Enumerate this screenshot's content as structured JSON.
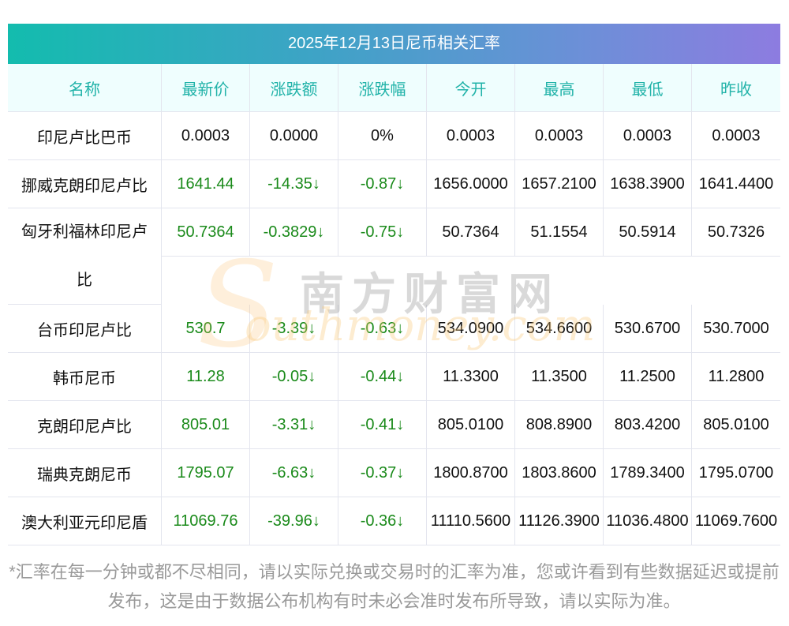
{
  "title": "2025年12月13日尼币相关汇率",
  "headers": [
    "名称",
    "最新价",
    "涨跌额",
    "涨跌幅",
    "今开",
    "最高",
    "最低",
    "昨收"
  ],
  "rows": [
    {
      "name": "印尼卢比巴币",
      "latest": "0.0003",
      "change": "0.0000",
      "pct": "0%",
      "open": "0.0003",
      "high": "0.0003",
      "low": "0.0003",
      "prev": "0.0003",
      "colored": false
    },
    {
      "name": "挪威克朗印尼卢比",
      "latest": "1641.44",
      "change": "-14.35↓",
      "pct": "-0.87↓",
      "open": "1656.0000",
      "high": "1657.2100",
      "low": "1638.3900",
      "prev": "1641.4400",
      "colored": true
    },
    {
      "name": "匈牙利福林印尼卢比",
      "latest": "50.7364",
      "change": "-0.3829↓",
      "pct": "-0.75↓",
      "open": "50.7364",
      "high": "51.1554",
      "low": "50.5914",
      "prev": "50.7326",
      "colored": true,
      "tall": true
    },
    {
      "name": "台币印尼卢比",
      "latest": "530.7",
      "change": "-3.39↓",
      "pct": "-0.63↓",
      "open": "534.0900",
      "high": "534.6600",
      "low": "530.6700",
      "prev": "530.7000",
      "colored": true
    },
    {
      "name": "韩币尼币",
      "latest": "11.28",
      "change": "-0.05↓",
      "pct": "-0.44↓",
      "open": "11.3300",
      "high": "11.3500",
      "low": "11.2500",
      "prev": "11.2800",
      "colored": true
    },
    {
      "name": "克朗印尼卢比",
      "latest": "805.01",
      "change": "-3.31↓",
      "pct": "-0.41↓",
      "open": "805.0100",
      "high": "808.8900",
      "low": "803.4200",
      "prev": "805.0100",
      "colored": true
    },
    {
      "name": "瑞典克朗尼币",
      "latest": "1795.07",
      "change": "-6.63↓",
      "pct": "-0.37↓",
      "open": "1800.8700",
      "high": "1803.8600",
      "low": "1789.3400",
      "prev": "1795.0700",
      "colored": true
    },
    {
      "name": "澳大利亚元印尼盾",
      "latest": "11069.76",
      "change": "-39.96↓",
      "pct": "-0.36↓",
      "open": "11110.5600",
      "high": "11126.3900",
      "low": "11036.4800",
      "prev": "11069.7600",
      "colored": true
    }
  ],
  "watermark": {
    "cn": "南方财富网",
    "en": "Southmoney.com"
  },
  "note": "*汇率在每一分钟或都不尽相同，请以实际兑换或交易时的汇率为准，您或许看到有些数据延迟或提前发布，这是由于数据公布机构有时未必会准时发布所导致，请以实际为准。",
  "colors": {
    "down": "#1a8a1a",
    "header_text": "#22b3a9",
    "header_bg": "#effefe"
  }
}
